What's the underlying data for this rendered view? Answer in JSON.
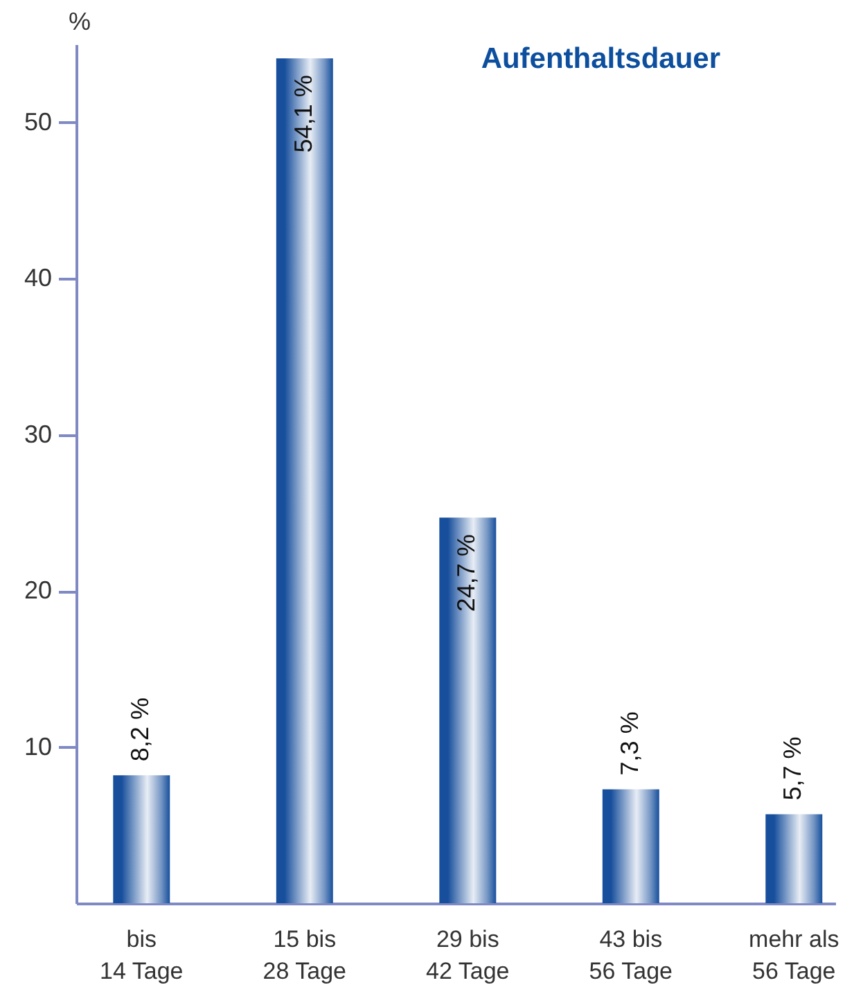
{
  "chart_data": {
    "type": "bar",
    "title": "Aufenthaltsdauer",
    "ylabel": "%",
    "categories": [
      "bis\n14 Tage",
      "15 bis\n28 Tage",
      "29 bis\n42 Tage",
      "43 bis\n56 Tage",
      "mehr als\n56 Tage"
    ],
    "values": [
      8.2,
      54.1,
      24.7,
      7.3,
      5.7
    ],
    "color": "#174f9c",
    "value_labels": [
      "8,2 %",
      "54,1 %",
      "24,7 %",
      "7,3 %",
      "5,7 %"
    ],
    "ylim": [
      0,
      55
    ],
    "yticks": [
      10,
      20,
      30,
      40,
      50
    ],
    "grid": false
  }
}
